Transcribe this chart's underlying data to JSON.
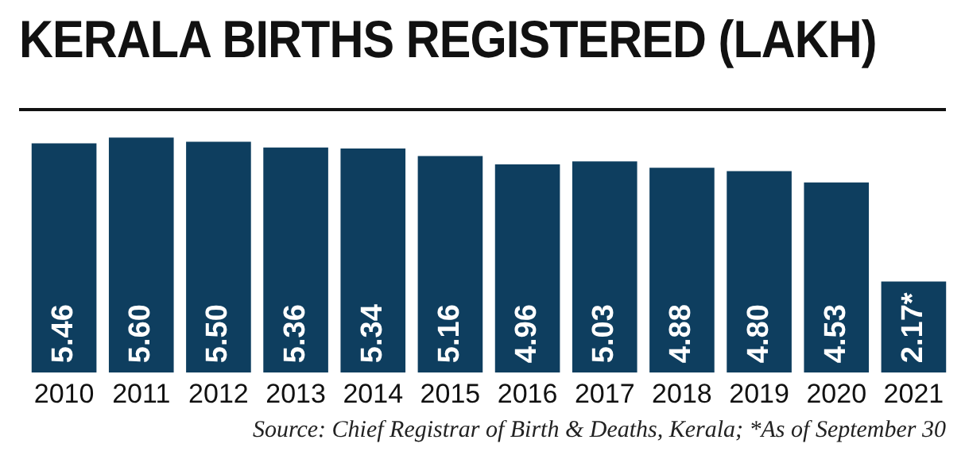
{
  "chart_data": {
    "type": "bar",
    "title": "KERALA BIRTHS REGISTERED (LAKH)",
    "categories": [
      "2010",
      "2011",
      "2012",
      "2013",
      "2014",
      "2015",
      "2016",
      "2017",
      "2018",
      "2019",
      "2020",
      "2021"
    ],
    "values": [
      5.46,
      5.6,
      5.5,
      5.36,
      5.34,
      5.16,
      4.96,
      5.03,
      4.88,
      4.8,
      4.53,
      2.17
    ],
    "value_labels": [
      "5.46",
      "5.60",
      "5.50",
      "5.36",
      "5.34",
      "5.16",
      "4.96",
      "5.03",
      "4.88",
      "4.80",
      "4.53",
      "2.17*"
    ],
    "color": "#0e3e5f",
    "relative": false,
    "grid": false,
    "legend": false,
    "annotations": [
      "Source: Chief Registrar of Birth & Deaths, Kerala; *As of September 30"
    ]
  }
}
